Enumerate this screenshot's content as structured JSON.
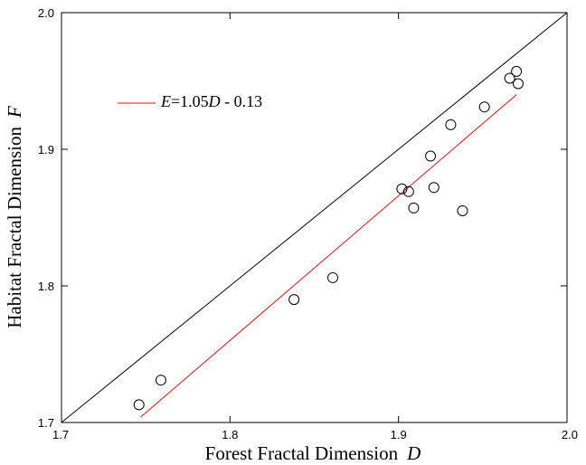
{
  "chart_data": {
    "type": "scatter",
    "xlabel": "Forest Fractal Dimension",
    "xlabel_symbol": "D",
    "ylabel": "Habitat Fractal Dimension",
    "ylabel_symbol": "F",
    "xlim": [
      1.7,
      2.0
    ],
    "ylim": [
      1.7,
      2.0
    ],
    "x_ticks": [
      "1.7",
      "1.8",
      "1.9",
      "2.0"
    ],
    "y_ticks": [
      "1.7",
      "1.8",
      "1.9",
      "2.0"
    ],
    "grid": false,
    "legend": {
      "placement": "top-left",
      "lhs": "E",
      "equals": "=",
      "coef": "1.05",
      "var": "D",
      "rest": " - 0.13",
      "color": "#e8100a"
    },
    "identity_line": {
      "x": [
        1.7,
        2.0
      ],
      "y": [
        1.7,
        2.0
      ],
      "color": "#000000"
    },
    "fit_line": {
      "x": [
        1.747,
        1.97
      ],
      "y": [
        1.704,
        1.94
      ],
      "color": "#e8100a"
    },
    "points": [
      {
        "x": 1.746,
        "y": 1.713
      },
      {
        "x": 1.759,
        "y": 1.731
      },
      {
        "x": 1.838,
        "y": 1.79
      },
      {
        "x": 1.861,
        "y": 1.806
      },
      {
        "x": 1.902,
        "y": 1.871
      },
      {
        "x": 1.906,
        "y": 1.869
      },
      {
        "x": 1.909,
        "y": 1.857
      },
      {
        "x": 1.919,
        "y": 1.895
      },
      {
        "x": 1.921,
        "y": 1.872
      },
      {
        "x": 1.931,
        "y": 1.918
      },
      {
        "x": 1.938,
        "y": 1.855
      },
      {
        "x": 1.951,
        "y": 1.931
      },
      {
        "x": 1.966,
        "y": 1.952
      },
      {
        "x": 1.97,
        "y": 1.957
      },
      {
        "x": 1.971,
        "y": 1.948
      }
    ]
  }
}
